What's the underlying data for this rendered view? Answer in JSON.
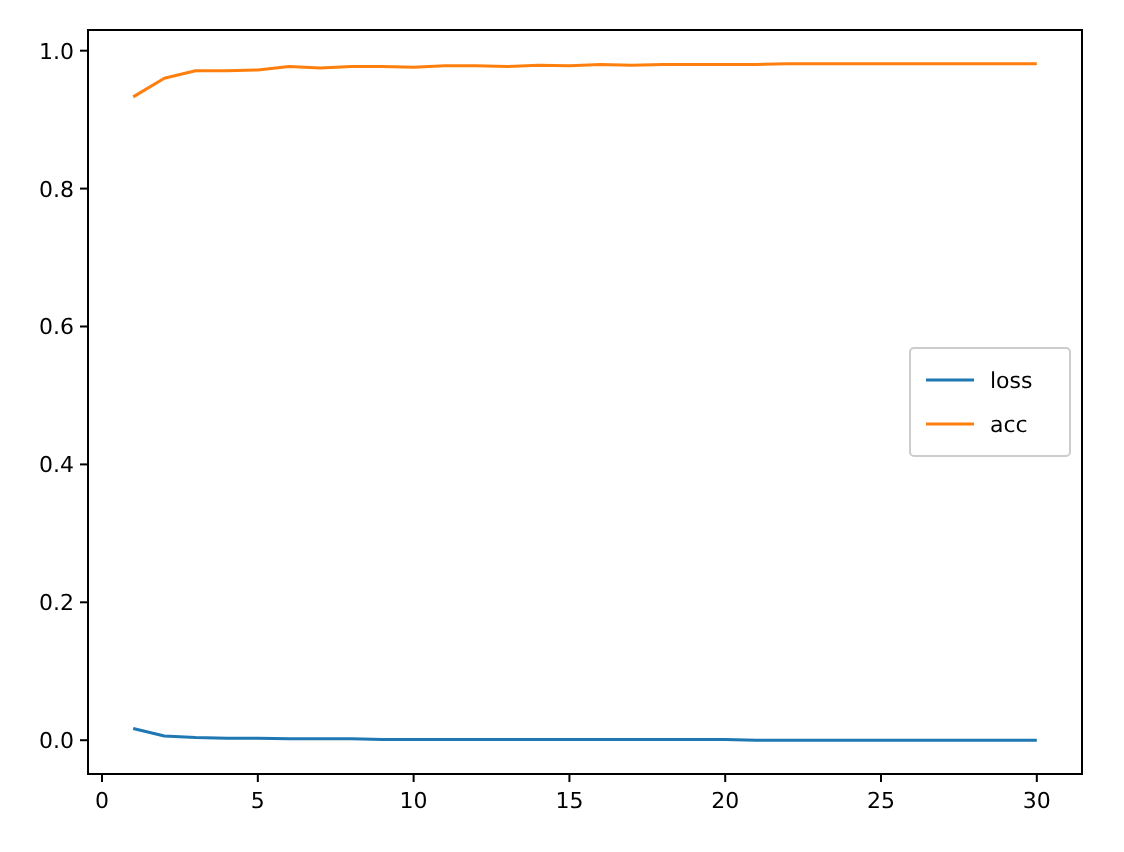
{
  "chart_data": {
    "type": "line",
    "x": [
      1,
      2,
      3,
      4,
      5,
      6,
      7,
      8,
      9,
      10,
      11,
      12,
      13,
      14,
      15,
      16,
      17,
      18,
      19,
      20,
      21,
      22,
      23,
      24,
      25,
      26,
      27,
      28,
      29,
      30
    ],
    "series": [
      {
        "name": "loss",
        "color": "#1f77b4",
        "values": [
          0.017,
          0.006,
          0.004,
          0.003,
          0.003,
          0.002,
          0.002,
          0.002,
          0.001,
          0.001,
          0.001,
          0.001,
          0.001,
          0.001,
          0.001,
          0.001,
          0.001,
          0.001,
          0.001,
          0.001,
          0,
          0,
          0,
          0,
          0,
          0,
          0,
          0,
          0,
          0
        ]
      },
      {
        "name": "acc",
        "color": "#ff7f0e",
        "values": [
          0.933,
          0.96,
          0.971,
          0.971,
          0.972,
          0.977,
          0.975,
          0.977,
          0.977,
          0.976,
          0.978,
          0.978,
          0.977,
          0.979,
          0.978,
          0.98,
          0.979,
          0.98,
          0.98,
          0.98,
          0.98,
          0.981,
          0.981,
          0.981,
          0.981,
          0.981,
          0.981,
          0.981,
          0.981,
          0.981
        ]
      }
    ],
    "xlim": [
      -0.45,
      31.45
    ],
    "ylim": [
      -0.049,
      1.03
    ],
    "xticks": [
      0,
      5,
      10,
      15,
      20,
      25,
      30
    ],
    "yticks": [
      {
        "value": 0,
        "label": "0.0"
      },
      {
        "value": 0.2,
        "label": "0.2"
      },
      {
        "value": 0.4,
        "label": "0.4"
      },
      {
        "value": 0.6,
        "label": "0.6"
      },
      {
        "value": 0.8,
        "label": "0.8"
      },
      {
        "value": 1,
        "label": "1.0"
      }
    ],
    "legend": "right",
    "grid": false
  }
}
